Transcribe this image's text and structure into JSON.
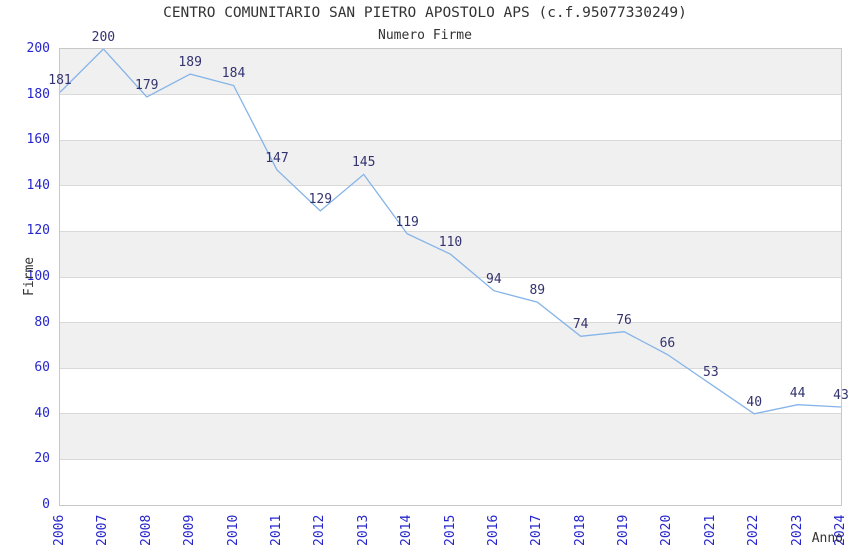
{
  "chart_data": {
    "type": "line",
    "title": "CENTRO COMUNITARIO SAN PIETRO APOSTOLO APS (c.f.95077330249)",
    "subtitle": "Numero Firme",
    "xlabel": "Anno",
    "ylabel": "Firme",
    "categories": [
      "2006",
      "2007",
      "2008",
      "2009",
      "2010",
      "2011",
      "2012",
      "2013",
      "2014",
      "2015",
      "2016",
      "2017",
      "2018",
      "2019",
      "2020",
      "2021",
      "2022",
      "2023",
      "2024"
    ],
    "series": [
      {
        "name": "Numero Firme",
        "values": [
          181,
          200,
          179,
          189,
          184,
          147,
          129,
          145,
          119,
          110,
          94,
          89,
          74,
          76,
          66,
          53,
          40,
          44,
          43
        ]
      }
    ],
    "ylim": [
      0,
      200
    ],
    "ytick_step": 20,
    "grid": "horizontal-bands-alternating",
    "legend": "none",
    "data_labels_visible": true
  },
  "colors": {
    "line": "#85b4e8",
    "tick_label": "#2626cc",
    "data_label": "#333370",
    "band_fill": "#f0f0f0",
    "grid_line": "#d9d9d9",
    "plot_border": "#c8c8c8",
    "title_text": "#333333",
    "axis_title_text": "#333333"
  }
}
